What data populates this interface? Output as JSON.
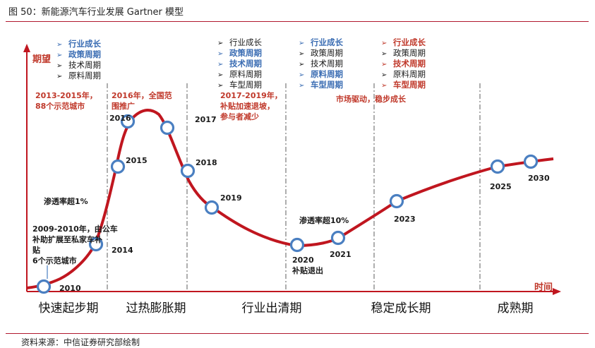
{
  "figure_title": "图 50：新能源汽车行业发展 Gartner 模型",
  "source_note": "资料来源：中信证券研究部绘制",
  "colors": {
    "curve": "#c0161f",
    "marker_stroke": "#4a7fc1",
    "axis": "#c0161f",
    "accent_red": "#c0392b",
    "accent_blue": "#3b6db3",
    "dash": "#9a9a9a",
    "text": "#222222"
  },
  "chart_data": {
    "type": "line",
    "title": "",
    "ylabel": "期望",
    "xlabel": "时间",
    "grid": false,
    "points": [
      {
        "year": "2010"
      },
      {
        "year": "2014"
      },
      {
        "year": "2015"
      },
      {
        "year": "2016"
      },
      {
        "year": "2017"
      },
      {
        "year": "2018"
      },
      {
        "year": "2019"
      },
      {
        "year": "2020"
      },
      {
        "year": "2021"
      },
      {
        "year": "2023"
      },
      {
        "year": "2025"
      },
      {
        "year": "2030"
      }
    ],
    "phases": [
      "快速起步期",
      "过热膨胀期",
      "行业出清期",
      "稳定成长期",
      "成熟期"
    ],
    "annotations": [
      "2013-2015年，",
      "88个示范城市",
      "2016年，全国范",
      "围推广",
      "2017-2019年，",
      "补贴加速退坡，",
      "参与者减少",
      "市场驱动，稳步成长",
      "渗透率超1%",
      "渗透率超10%",
      "2009-2010年，由公车",
      "补助扩展至私家车补",
      "贴",
      "6个示范城市",
      "补贴退出"
    ],
    "factor_groups": [
      {
        "items": [
          {
            "text": "行业成长",
            "emphasis": "blue"
          },
          {
            "text": "政策周期",
            "emphasis": "blue"
          },
          {
            "text": "技术周期",
            "emphasis": "none"
          },
          {
            "text": "原料周期",
            "emphasis": "none"
          }
        ]
      },
      {
        "items": [
          {
            "text": "行业成长",
            "emphasis": "none"
          },
          {
            "text": "政策周期",
            "emphasis": "blue"
          },
          {
            "text": "技术周期",
            "emphasis": "blue"
          },
          {
            "text": "原料周期",
            "emphasis": "none"
          },
          {
            "text": "车型周期",
            "emphasis": "none"
          }
        ]
      },
      {
        "items": [
          {
            "text": "行业成长",
            "emphasis": "blue"
          },
          {
            "text": "政策周期",
            "emphasis": "none"
          },
          {
            "text": "技术周期",
            "emphasis": "none"
          },
          {
            "text": "原料周期",
            "emphasis": "blue"
          },
          {
            "text": "车型周期",
            "emphasis": "blue"
          }
        ]
      },
      {
        "items": [
          {
            "text": "行业成长",
            "emphasis": "red"
          },
          {
            "text": "政策周期",
            "emphasis": "none"
          },
          {
            "text": "技术周期",
            "emphasis": "red"
          },
          {
            "text": "原料周期",
            "emphasis": "none"
          },
          {
            "text": "车型周期",
            "emphasis": "red"
          }
        ]
      }
    ]
  }
}
